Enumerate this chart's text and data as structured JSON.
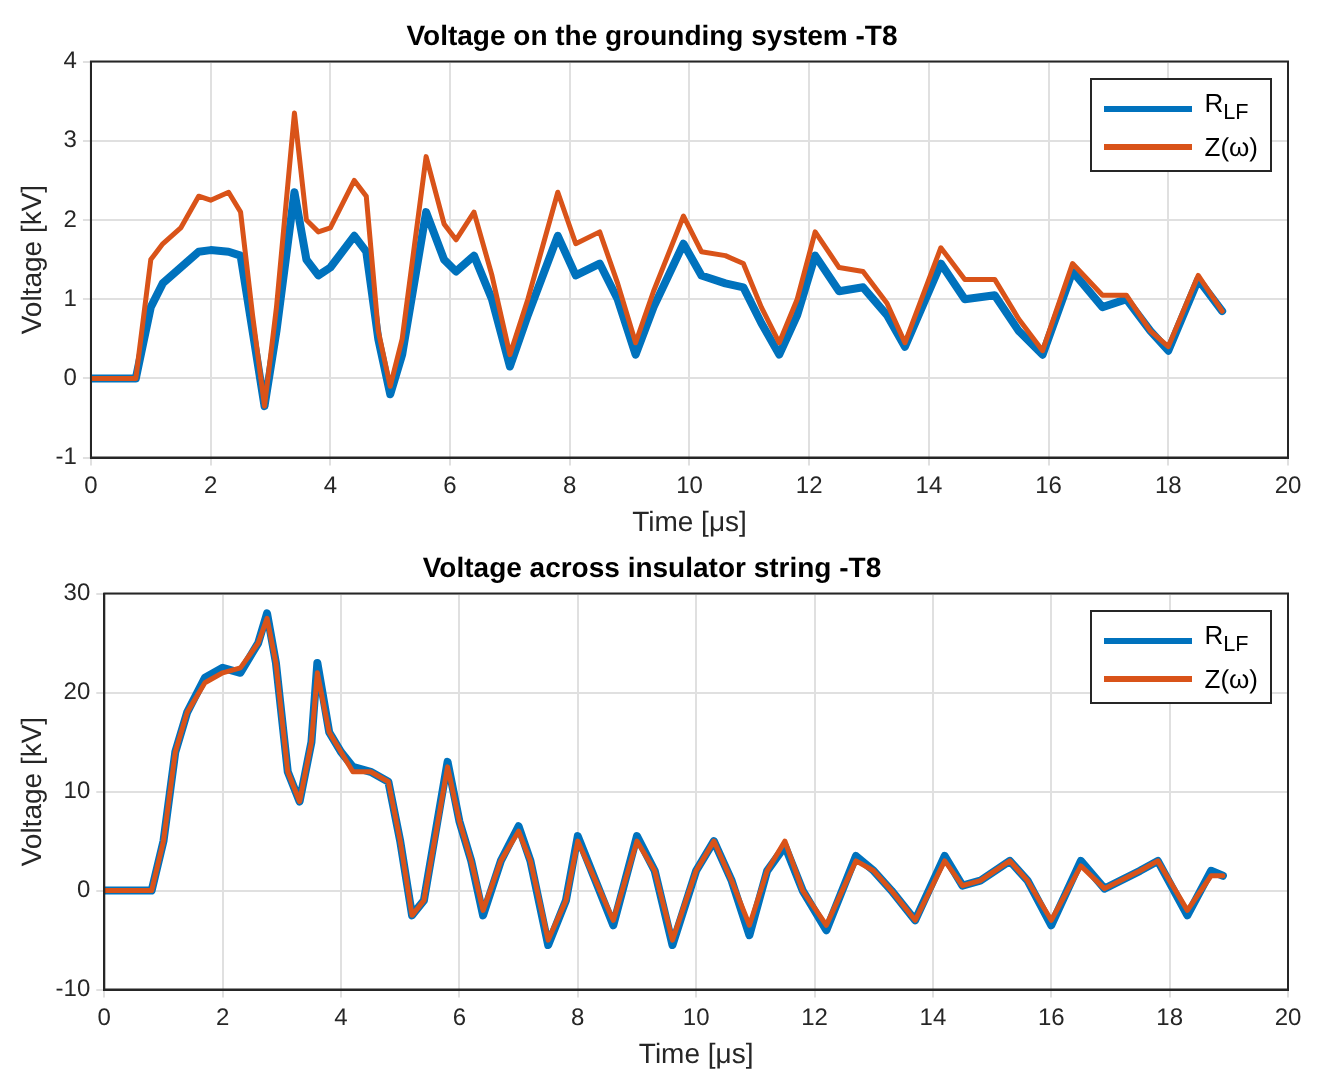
{
  "chart_data": [
    {
      "type": "line",
      "title": "Voltage on the grounding system -T8",
      "xlabel": "Time [μs]",
      "ylabel": "Voltage [kV]",
      "x": [
        0,
        0.75,
        1.0,
        1.2,
        1.5,
        1.8,
        2.0,
        2.3,
        2.5,
        2.7,
        2.9,
        3.1,
        3.4,
        3.6,
        3.8,
        4.0,
        4.4,
        4.6,
        4.8,
        5.0,
        5.2,
        5.6,
        5.9,
        6.1,
        6.4,
        6.7,
        7.0,
        7.3,
        7.8,
        8.1,
        8.5,
        8.8,
        9.1,
        9.4,
        9.9,
        10.2,
        10.6,
        10.9,
        11.2,
        11.5,
        11.8,
        12.1,
        12.5,
        12.9,
        13.3,
        13.6,
        14.2,
        14.6,
        15.1,
        15.5,
        15.9,
        16.4,
        16.9,
        17.3,
        17.7,
        18.0,
        18.5,
        18.9
      ],
      "series": [
        {
          "name": "R$_{LF}$",
          "color": "#0072bd",
          "values": [
            0,
            0,
            0.9,
            1.2,
            1.4,
            1.6,
            1.62,
            1.6,
            1.55,
            0.6,
            -0.35,
            0.6,
            2.35,
            1.5,
            1.3,
            1.4,
            1.8,
            1.6,
            0.5,
            -0.2,
            0.3,
            2.1,
            1.5,
            1.35,
            1.55,
            1.0,
            0.15,
            0.8,
            1.8,
            1.3,
            1.45,
            1.0,
            0.3,
            0.9,
            1.7,
            1.3,
            1.2,
            1.15,
            0.7,
            0.3,
            0.8,
            1.55,
            1.1,
            1.15,
            0.8,
            0.4,
            1.45,
            1.0,
            1.05,
            0.6,
            0.3,
            1.35,
            0.9,
            1.0,
            0.6,
            0.35,
            1.25,
            0.85
          ]
        },
        {
          "name": "Z(ω)",
          "color": "#d95319",
          "values": [
            0,
            0,
            1.5,
            1.7,
            1.9,
            2.3,
            2.25,
            2.35,
            2.1,
            0.8,
            -0.35,
            0.9,
            3.35,
            2.0,
            1.85,
            1.9,
            2.5,
            2.3,
            0.6,
            -0.1,
            0.5,
            2.8,
            1.95,
            1.75,
            2.1,
            1.3,
            0.3,
            1.0,
            2.35,
            1.7,
            1.85,
            1.2,
            0.45,
            1.1,
            2.05,
            1.6,
            1.55,
            1.45,
            0.9,
            0.45,
            1.0,
            1.85,
            1.4,
            1.35,
            0.95,
            0.45,
            1.65,
            1.25,
            1.25,
            0.75,
            0.35,
            1.45,
            1.05,
            1.05,
            0.6,
            0.4,
            1.3,
            0.85
          ]
        }
      ],
      "xlim": [
        0,
        20
      ],
      "xticks": [
        0,
        2,
        4,
        6,
        8,
        10,
        12,
        14,
        16,
        18,
        20
      ],
      "ylim": [
        -1,
        4
      ],
      "yticks": [
        -1,
        0,
        1,
        2,
        3,
        4
      ],
      "grid": true,
      "legend": "top right",
      "marker": "none",
      "line_style": "solid"
    },
    {
      "type": "line",
      "title": "Voltage across insulator string -T8",
      "xlabel": "Time [μs]",
      "ylabel": "Voltage [kV]",
      "x": [
        0,
        0.8,
        1.0,
        1.2,
        1.4,
        1.7,
        2.0,
        2.3,
        2.6,
        2.75,
        2.9,
        3.1,
        3.3,
        3.5,
        3.6,
        3.8,
        4.0,
        4.2,
        4.5,
        4.8,
        5.0,
        5.2,
        5.4,
        5.8,
        6.0,
        6.2,
        6.4,
        6.7,
        7.0,
        7.2,
        7.5,
        7.8,
        8.0,
        8.3,
        8.6,
        9.0,
        9.3,
        9.6,
        10.0,
        10.3,
        10.6,
        10.9,
        11.2,
        11.5,
        11.8,
        12.2,
        12.7,
        13.0,
        13.3,
        13.7,
        14.2,
        14.5,
        14.8,
        15.3,
        15.6,
        16.0,
        16.5,
        16.9,
        17.5,
        17.8,
        18.3,
        18.7,
        18.9
      ],
      "series": [
        {
          "name": "R$_{LF}$",
          "color": "#0072bd",
          "values": [
            0,
            0,
            5,
            14,
            18,
            21.5,
            22.5,
            22,
            25,
            28,
            23,
            12,
            9,
            15,
            23,
            16,
            14,
            12.5,
            12,
            11,
            5,
            -2.5,
            -1,
            13,
            7,
            3,
            -2.5,
            3,
            6.5,
            3,
            -5.5,
            -1,
            5.5,
            1,
            -3.5,
            5.5,
            2,
            -5.5,
            2,
            5,
            1,
            -4.5,
            2,
            4.5,
            0,
            -4,
            3.5,
            2,
            0,
            -3,
            3.5,
            0.5,
            1,
            3,
            1,
            -3.5,
            3,
            0.2,
            2,
            3,
            -2.5,
            2,
            1.5
          ]
        },
        {
          "name": "Z(ω)",
          "color": "#d95319",
          "values": [
            0,
            0,
            5,
            14,
            18,
            21,
            22,
            22.5,
            25,
            27.5,
            23,
            12,
            9,
            15,
            22,
            16,
            14,
            12,
            12,
            11,
            5,
            -2.5,
            -1,
            12.5,
            7,
            3,
            -2,
            3,
            6,
            3,
            -5,
            -1,
            5,
            1,
            -3,
            5,
            2,
            -5,
            2,
            5,
            1,
            -3.5,
            2,
            5,
            0,
            -3.5,
            3,
            2,
            0,
            -3,
            3,
            0.5,
            1,
            3,
            1,
            -3,
            2.5,
            0.2,
            2,
            3,
            -2,
            1.5,
            1.5
          ]
        }
      ],
      "xlim": [
        0,
        20
      ],
      "xticks": [
        0,
        2,
        4,
        6,
        8,
        10,
        12,
        14,
        16,
        18,
        20
      ],
      "ylim": [
        -10,
        30
      ],
      "yticks": [
        -10,
        0,
        10,
        20,
        30
      ],
      "grid": true,
      "legend": "top right",
      "marker": "none",
      "line_style": "solid"
    }
  ]
}
